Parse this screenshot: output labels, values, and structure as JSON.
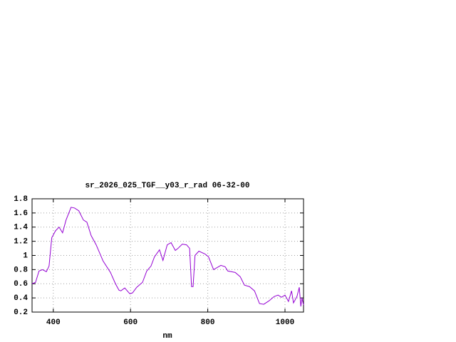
{
  "chart_data": {
    "type": "line",
    "title": "sr_2026_025_TGF__y03_r_rad 06-32-00",
    "x_label": "nm",
    "color": "#9400d3",
    "grid": true,
    "xlim": [
      345,
      1048
    ],
    "xticks": [
      400,
      600,
      800,
      1000
    ],
    "ylim": [
      0.2,
      1.8
    ],
    "yticks": [
      0.2,
      0.4,
      0.6,
      0.8,
      1,
      1.2,
      1.4,
      1.6,
      1.8
    ],
    "x": [
      345,
      354,
      363,
      372,
      382,
      389,
      396,
      406,
      415,
      424,
      433,
      446,
      455,
      466,
      478,
      487,
      498,
      511,
      529,
      548,
      561,
      570,
      575,
      585,
      598,
      605,
      616,
      631,
      642,
      653,
      662,
      675,
      684,
      695,
      705,
      716,
      723,
      734,
      745,
      753,
      758,
      762,
      767,
      777,
      793,
      802,
      815,
      834,
      845,
      852,
      871,
      884,
      895,
      908,
      921,
      934,
      945,
      959,
      972,
      982,
      991,
      1000,
      1009,
      1017,
      1022,
      1031,
      1037,
      1041,
      1044,
      1048
    ],
    "values": [
      0.6,
      0.62,
      0.78,
      0.8,
      0.77,
      0.85,
      1.25,
      1.35,
      1.4,
      1.32,
      1.5,
      1.68,
      1.67,
      1.63,
      1.5,
      1.47,
      1.28,
      1.15,
      0.92,
      0.76,
      0.6,
      0.51,
      0.5,
      0.54,
      0.46,
      0.47,
      0.55,
      0.62,
      0.78,
      0.85,
      0.98,
      1.08,
      0.93,
      1.15,
      1.18,
      1.07,
      1.1,
      1.16,
      1.15,
      1.1,
      0.56,
      0.56,
      1.0,
      1.06,
      1.02,
      0.98,
      0.8,
      0.86,
      0.84,
      0.78,
      0.76,
      0.7,
      0.58,
      0.56,
      0.5,
      0.32,
      0.31,
      0.36,
      0.42,
      0.44,
      0.41,
      0.44,
      0.35,
      0.5,
      0.33,
      0.42,
      0.55,
      0.28,
      0.4,
      0.3
    ]
  }
}
